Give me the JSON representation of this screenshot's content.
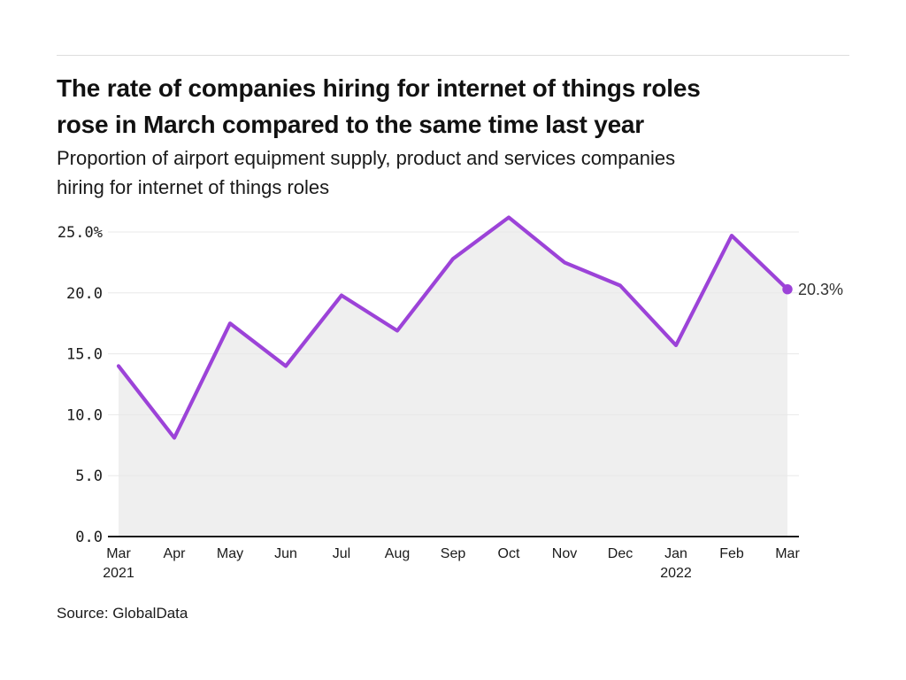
{
  "header": {
    "title_line1": "The rate of companies hiring for internet of things roles",
    "title_line2": "rose in March compared to the same time last year",
    "subtitle_line1": "Proportion of airport equipment supply, product and services companies",
    "subtitle_line2": "hiring for internet of things roles"
  },
  "chart_data": {
    "type": "area",
    "title": "The rate of companies hiring for internet of things roles rose in March compared to the same time last year",
    "subtitle": "Proportion of airport equipment supply, product and services companies hiring for internet of things roles",
    "categories": [
      "Mar",
      "Apr",
      "May",
      "Jun",
      "Jul",
      "Aug",
      "Sep",
      "Oct",
      "Nov",
      "Dec",
      "Jan",
      "Feb",
      "Mar"
    ],
    "year_markers": [
      {
        "index": 0,
        "label": "2021"
      },
      {
        "index": 10,
        "label": "2022"
      }
    ],
    "series": [
      {
        "name": "Proportion of companies hiring for internet of things roles",
        "values": [
          14.0,
          8.1,
          17.5,
          14.0,
          19.8,
          16.9,
          22.8,
          26.2,
          22.5,
          20.6,
          15.7,
          24.7,
          20.3
        ]
      }
    ],
    "end_point_label": "20.3%",
    "yticks": [
      0,
      5,
      10,
      15,
      20,
      25
    ],
    "ytick_labels": [
      "0.0",
      "5.0",
      "10.0",
      "15.0",
      "20.0",
      "25.0%"
    ],
    "ylim": [
      0,
      27
    ],
    "grid": true,
    "legend": "none",
    "line_color": "#9c43d8",
    "area_color": "#efefef",
    "grid_color": "#e8e8e8",
    "axis_color": "#1a1a1a"
  },
  "footer": {
    "source": "Source: GlobalData"
  }
}
